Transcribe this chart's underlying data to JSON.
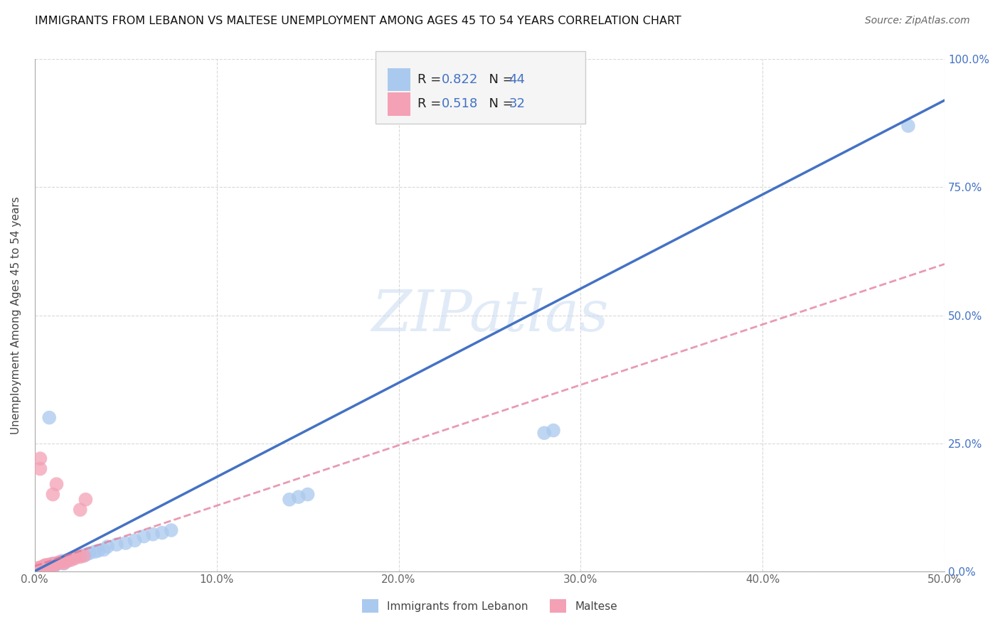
{
  "title": "IMMIGRANTS FROM LEBANON VS MALTESE UNEMPLOYMENT AMONG AGES 45 TO 54 YEARS CORRELATION CHART",
  "source": "Source: ZipAtlas.com",
  "ylabel": "Unemployment Among Ages 45 to 54 years",
  "watermark": "ZIPatlas",
  "xlim": [
    0.0,
    0.5
  ],
  "ylim": [
    0.0,
    1.0
  ],
  "xticks": [
    0.0,
    0.1,
    0.2,
    0.3,
    0.4,
    0.5
  ],
  "yticks": [
    0.0,
    0.25,
    0.5,
    0.75,
    1.0
  ],
  "xticklabels": [
    "0.0%",
    "10.0%",
    "20.0%",
    "30.0%",
    "40.0%",
    "50.0%"
  ],
  "yticklabels": [
    "0.0%",
    "25.0%",
    "50.0%",
    "75.0%",
    "100.0%"
  ],
  "legend_bottom_label1": "Immigrants from Lebanon",
  "legend_bottom_label2": "Maltese",
  "color_blue": "#aac9ee",
  "color_pink": "#f4a0b5",
  "color_blue_dark": "#4472c4",
  "color_pink_trend": "#e07090",
  "trendline_blue": [
    0.0,
    0.0,
    0.5,
    0.92
  ],
  "trendline_pink": [
    0.0,
    0.01,
    0.5,
    0.6
  ],
  "background_color": "#ffffff",
  "grid_color": "#d0d0d0",
  "lebanon_points": [
    [
      0.001,
      0.002
    ],
    [
      0.001,
      0.003
    ],
    [
      0.002,
      0.005
    ],
    [
      0.002,
      0.004
    ],
    [
      0.003,
      0.006
    ],
    [
      0.003,
      0.003
    ],
    [
      0.004,
      0.007
    ],
    [
      0.004,
      0.004
    ],
    [
      0.005,
      0.008
    ],
    [
      0.005,
      0.005
    ],
    [
      0.006,
      0.01
    ],
    [
      0.006,
      0.006
    ],
    [
      0.007,
      0.009
    ],
    [
      0.008,
      0.012
    ],
    [
      0.009,
      0.008
    ],
    [
      0.01,
      0.015
    ],
    [
      0.011,
      0.011
    ],
    [
      0.012,
      0.014
    ],
    [
      0.013,
      0.016
    ],
    [
      0.015,
      0.02
    ],
    [
      0.016,
      0.015
    ],
    [
      0.018,
      0.022
    ],
    [
      0.02,
      0.025
    ],
    [
      0.022,
      0.028
    ],
    [
      0.025,
      0.03
    ],
    [
      0.028,
      0.032
    ],
    [
      0.03,
      0.035
    ],
    [
      0.033,
      0.038
    ],
    [
      0.035,
      0.04
    ],
    [
      0.038,
      0.042
    ],
    [
      0.04,
      0.048
    ],
    [
      0.045,
      0.052
    ],
    [
      0.05,
      0.055
    ],
    [
      0.055,
      0.06
    ],
    [
      0.06,
      0.068
    ],
    [
      0.065,
      0.072
    ],
    [
      0.07,
      0.075
    ],
    [
      0.075,
      0.08
    ],
    [
      0.008,
      0.3
    ],
    [
      0.14,
      0.14
    ],
    [
      0.145,
      0.145
    ],
    [
      0.15,
      0.15
    ],
    [
      0.28,
      0.27
    ],
    [
      0.285,
      0.275
    ],
    [
      0.48,
      0.87
    ]
  ],
  "maltese_points": [
    [
      0.001,
      0.002
    ],
    [
      0.001,
      0.004
    ],
    [
      0.002,
      0.003
    ],
    [
      0.002,
      0.006
    ],
    [
      0.003,
      0.005
    ],
    [
      0.003,
      0.007
    ],
    [
      0.004,
      0.008
    ],
    [
      0.004,
      0.006
    ],
    [
      0.005,
      0.01
    ],
    [
      0.005,
      0.008
    ],
    [
      0.006,
      0.012
    ],
    [
      0.006,
      0.009
    ],
    [
      0.007,
      0.011
    ],
    [
      0.008,
      0.013
    ],
    [
      0.009,
      0.01
    ],
    [
      0.01,
      0.014
    ],
    [
      0.011,
      0.012
    ],
    [
      0.012,
      0.015
    ],
    [
      0.013,
      0.017
    ],
    [
      0.015,
      0.018
    ],
    [
      0.016,
      0.016
    ],
    [
      0.018,
      0.02
    ],
    [
      0.02,
      0.022
    ],
    [
      0.022,
      0.025
    ],
    [
      0.025,
      0.028
    ],
    [
      0.027,
      0.03
    ],
    [
      0.003,
      0.2
    ],
    [
      0.003,
      0.22
    ],
    [
      0.01,
      0.15
    ],
    [
      0.012,
      0.17
    ],
    [
      0.025,
      0.12
    ],
    [
      0.028,
      0.14
    ]
  ]
}
